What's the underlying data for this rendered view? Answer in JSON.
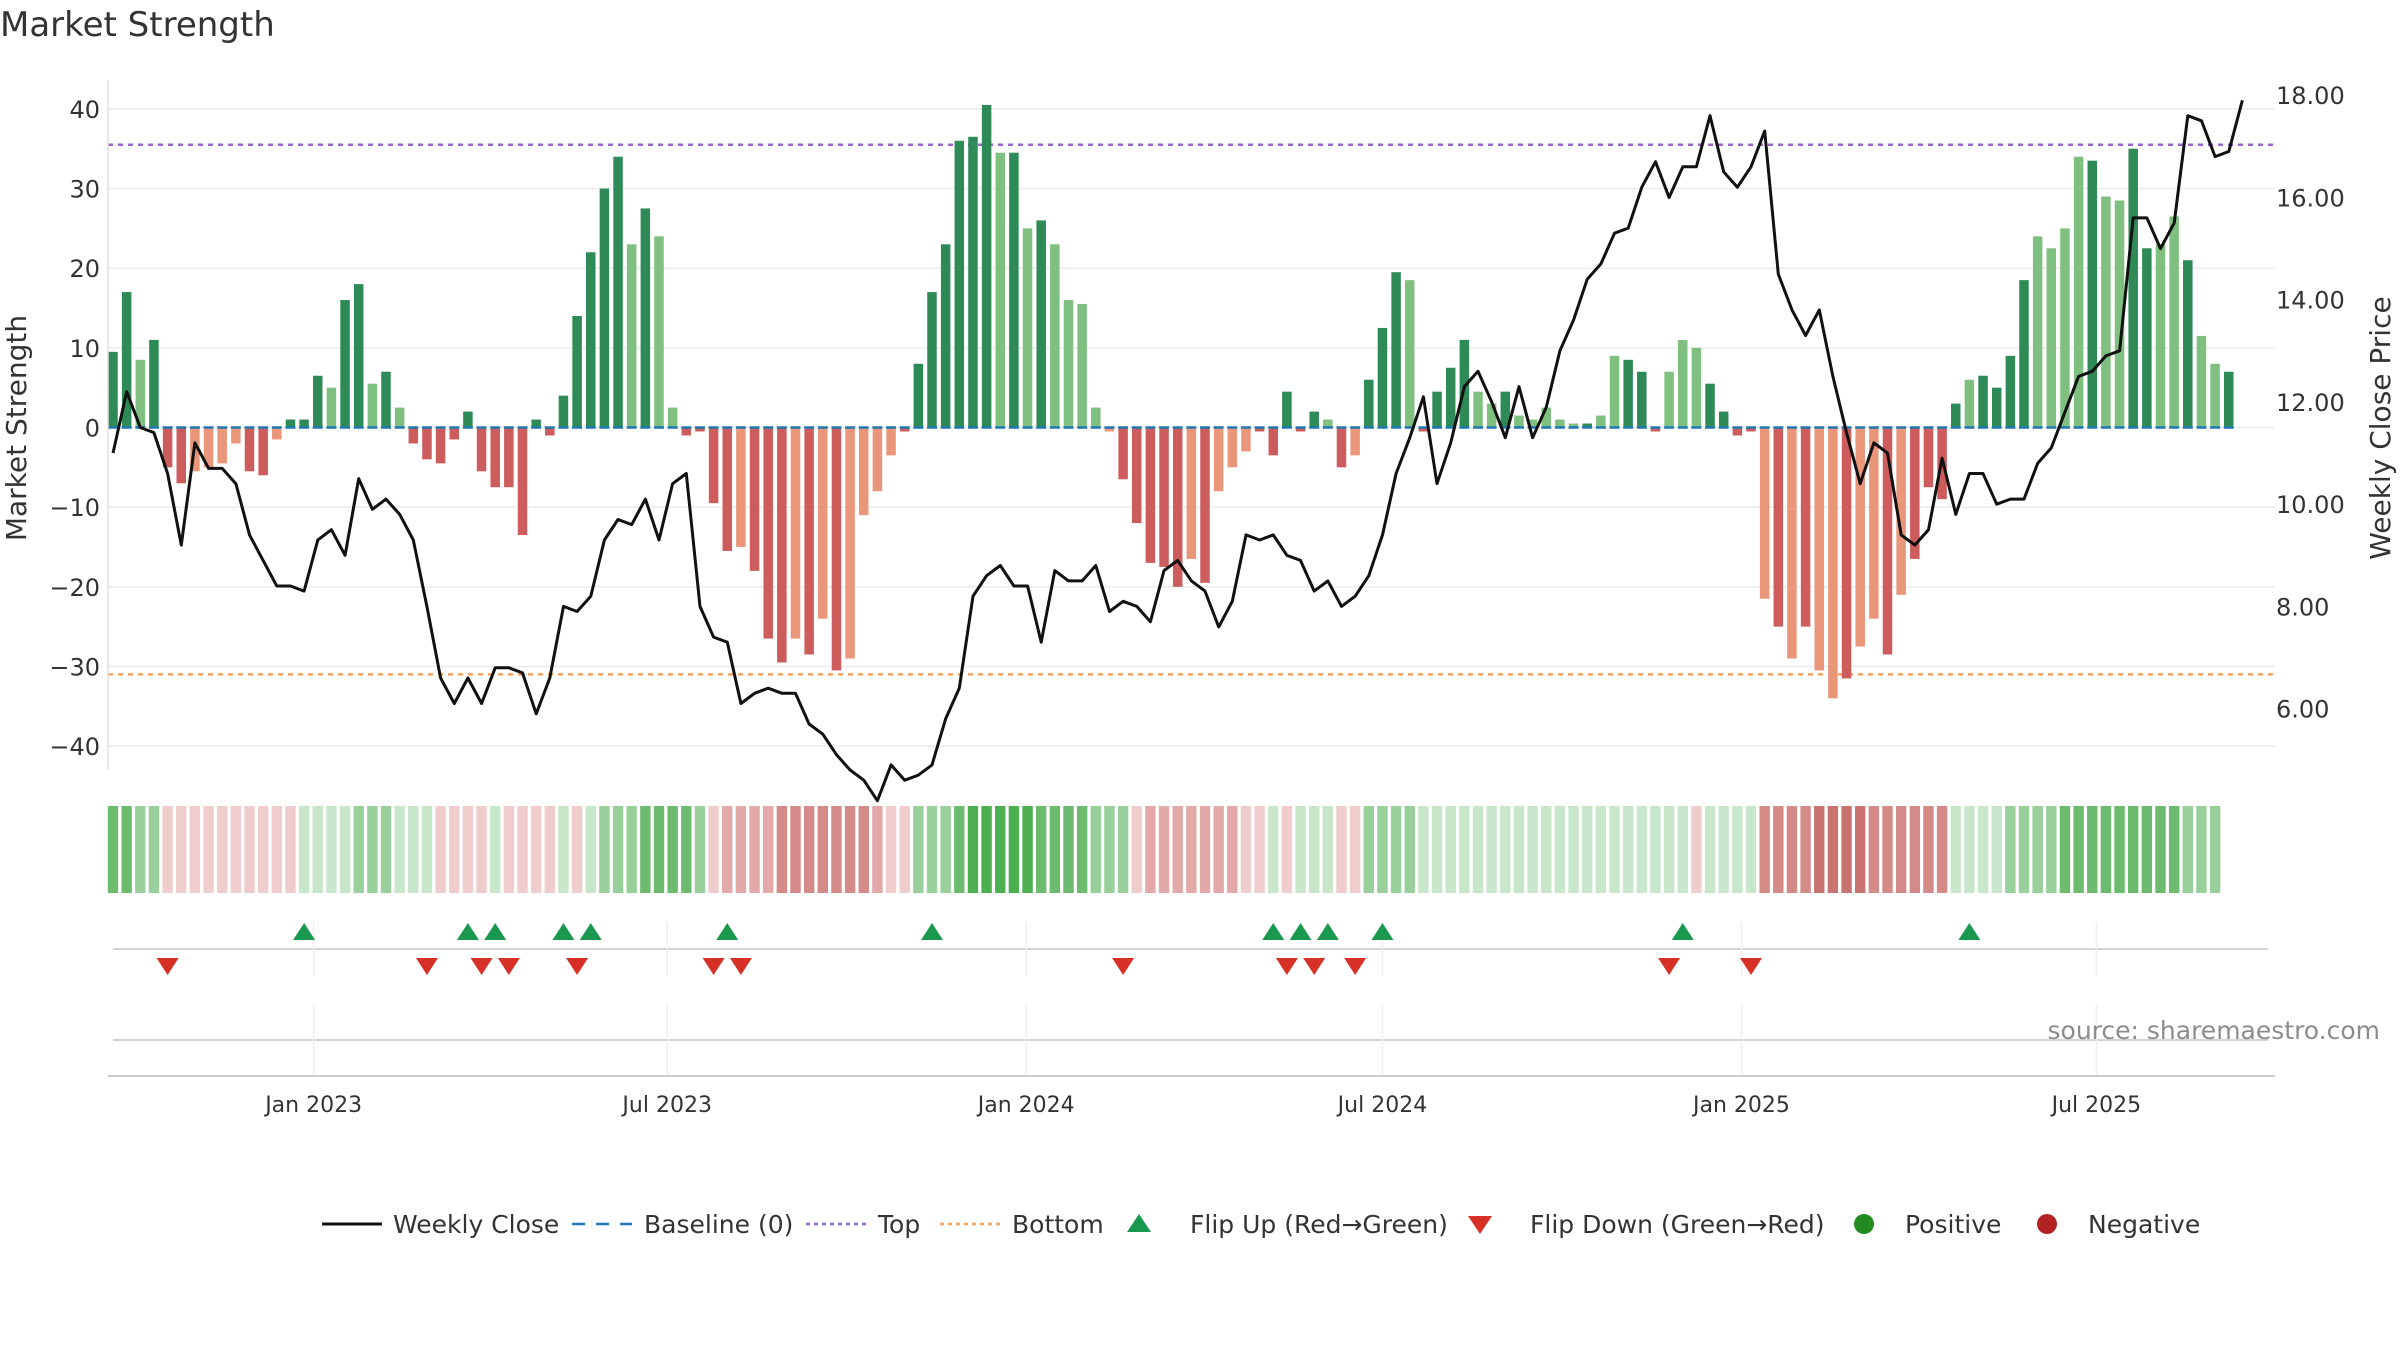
{
  "chart_data": {
    "type": "bar",
    "title": "Market Strength",
    "ylabel_left": "Market Strength",
    "ylabel_right": "Weekly Close Price",
    "ylim_left": [
      -43,
      43
    ],
    "ylim_right": [
      4.8,
      18.2
    ],
    "yticks_left": [
      40,
      30,
      20,
      10,
      0,
      -10,
      -20,
      -30,
      -40
    ],
    "yticks_left_labels": [
      "40",
      "30",
      "20",
      "10",
      "0",
      "−10",
      "−20",
      "−30",
      "−40"
    ],
    "yticks_right": [
      18,
      16,
      14,
      12,
      10,
      8,
      6
    ],
    "yticks_right_labels": [
      "18.00",
      "16.00",
      "14.00",
      "12.00",
      "10.00",
      "8.00",
      "6.00"
    ],
    "x_start_index": 0,
    "x_end_index": 157,
    "xticks": [
      {
        "index": 14.7,
        "label": "Jan 2023"
      },
      {
        "index": 40.6,
        "label": "Jul 2023"
      },
      {
        "index": 66.9,
        "label": "Jan 2024"
      },
      {
        "index": 93.0,
        "label": "Jul 2024"
      },
      {
        "index": 119.3,
        "label": "Jan 2025"
      },
      {
        "index": 145.3,
        "label": "Jul 2025"
      }
    ],
    "top_level": 35.5,
    "bottom_level": -31,
    "strength": [
      9.5,
      17,
      8.5,
      11,
      -5,
      -7,
      -5.5,
      -5,
      -4.5,
      -2,
      -5.5,
      -6,
      -1.5,
      1,
      1,
      6.5,
      5,
      16,
      18,
      5.5,
      7,
      2.5,
      -2,
      -4,
      -4.5,
      -1.5,
      2,
      -5.5,
      -7.5,
      -7.5,
      -13.5,
      1,
      -1,
      4,
      14,
      22,
      30,
      34,
      23,
      27.5,
      24,
      2.5,
      -1,
      -0.5,
      -9.5,
      -15.5,
      -15,
      -18,
      -26.5,
      -29.5,
      -26.5,
      -28.5,
      -24,
      -30.5,
      -29,
      -11,
      -8,
      -3.5,
      -0.5,
      8,
      17,
      23,
      36,
      36.5,
      40.5,
      34.5,
      34.5,
      25,
      26,
      23,
      16,
      15.5,
      2.5,
      -0.5,
      -6.5,
      -12,
      -17,
      -17.5,
      -20,
      -16.5,
      -19.5,
      -8,
      -5,
      -3,
      -0.5,
      -3.5,
      4.5,
      -0.5,
      2,
      1,
      -5,
      -3.5,
      6,
      12.5,
      19.5,
      18.5,
      -0.5,
      4.5,
      7.5,
      11,
      4.5,
      3,
      4.5,
      1.5,
      1,
      2.5,
      1,
      0.5,
      0.5,
      1.5,
      9,
      8.5,
      7,
      -0.5,
      7,
      11,
      10,
      5.5,
      2,
      -1,
      -0.5,
      -21.5,
      -25,
      -29,
      -25,
      -30.5,
      -34,
      -31.5,
      -27.5,
      -24,
      -28.5,
      -21,
      -16.5,
      -7.5,
      -9,
      3,
      6,
      6.5,
      5,
      9,
      18.5,
      24,
      22.5,
      25,
      34,
      33.5,
      29,
      28.5,
      35,
      22.5,
      23,
      26.5,
      21,
      11.5,
      8,
      7
    ],
    "bar_tone": [
      "d",
      "d",
      "l",
      "d",
      "d",
      "d",
      "l",
      "l",
      "l",
      "l",
      "d",
      "d",
      "l",
      "d",
      "d",
      "d",
      "l",
      "d",
      "d",
      "l",
      "d",
      "l",
      "d",
      "d",
      "d",
      "d",
      "d",
      "d",
      "d",
      "d",
      "d",
      "d",
      "d",
      "d",
      "d",
      "d",
      "d",
      "d",
      "l",
      "d",
      "l",
      "l",
      "d",
      "d",
      "d",
      "d",
      "l",
      "d",
      "d",
      "d",
      "l",
      "d",
      "l",
      "d",
      "l",
      "l",
      "l",
      "l",
      "d",
      "d",
      "d",
      "d",
      "d",
      "d",
      "d",
      "l",
      "d",
      "l",
      "d",
      "l",
      "l",
      "l",
      "l",
      "l",
      "d",
      "d",
      "d",
      "d",
      "d",
      "l",
      "d",
      "l",
      "l",
      "l",
      "d",
      "d",
      "d",
      "d",
      "d",
      "l",
      "d",
      "l",
      "d",
      "d",
      "d",
      "l",
      "d",
      "d",
      "d",
      "d",
      "l",
      "l",
      "d",
      "l",
      "l",
      "l",
      "l",
      "l",
      "d",
      "l",
      "l",
      "d",
      "d",
      "d",
      "l",
      "l",
      "l",
      "d",
      "d",
      "d",
      "d",
      "l",
      "d",
      "l",
      "d",
      "l",
      "l",
      "d",
      "l",
      "l",
      "d",
      "l",
      "d",
      "d",
      "d",
      "d",
      "l",
      "d",
      "d",
      "d",
      "d",
      "l",
      "l",
      "l",
      "l",
      "d",
      "l",
      "l",
      "d",
      "d",
      "l",
      "l",
      "d",
      "l",
      "l",
      "d",
      "l",
      "l",
      "l"
    ],
    "weekly_close": [
      11,
      12.2,
      11.5,
      11.4,
      10.6,
      9.2,
      11.2,
      10.7,
      10.7,
      10.4,
      9.4,
      8.9,
      8.4,
      8.4,
      8.3,
      9.3,
      9.5,
      9.0,
      10.5,
      9.9,
      10.1,
      9.8,
      9.3,
      8.0,
      6.6,
      6.1,
      6.6,
      6.1,
      6.8,
      6.8,
      6.7,
      5.9,
      6.6,
      8.0,
      7.9,
      8.2,
      9.3,
      9.7,
      9.6,
      10.1,
      9.3,
      10.4,
      10.6,
      8.0,
      7.4,
      7.3,
      6.1,
      6.3,
      6.4,
      6.3,
      6.3,
      5.7,
      5.5,
      5.1,
      4.8,
      4.6,
      4.2,
      4.9,
      4.6,
      4.7,
      4.9,
      5.8,
      6.4,
      8.2,
      8.6,
      8.8,
      8.4,
      8.4,
      7.3,
      8.7,
      8.5,
      8.5,
      8.8,
      7.9,
      8.1,
      8.0,
      7.7,
      8.7,
      8.9,
      8.5,
      8.3,
      7.6,
      8.1,
      9.4,
      9.3,
      9.4,
      9.0,
      8.9,
      8.3,
      8.5,
      8.0,
      8.2,
      8.6,
      9.4,
      10.6,
      11.3,
      12.1,
      10.4,
      11.2,
      12.3,
      12.6,
      12.0,
      11.3,
      12.3,
      11.3,
      11.9,
      13.0,
      13.6,
      14.4,
      14.7,
      15.3,
      15.4,
      16.2,
      16.7,
      16.0,
      16.6,
      16.6,
      17.6,
      16.5,
      16.2,
      16.6,
      17.3,
      14.5,
      13.8,
      13.3,
      13.8,
      12.5,
      11.4,
      10.4,
      11.2,
      11.0,
      9.4,
      9.2,
      9.5,
      10.9,
      9.8,
      10.6,
      10.6,
      10.0,
      10.1,
      10.1,
      10.8,
      11.1,
      11.8,
      12.5,
      12.6,
      12.9,
      13.0,
      15.6,
      15.6,
      15.0,
      15.5,
      17.6,
      17.5,
      16.8,
      16.9,
      17.9
    ],
    "flip_up_indices": [
      14,
      26,
      28,
      33,
      35,
      45,
      60,
      85,
      87,
      89,
      93,
      115,
      136
    ],
    "flip_down_indices": [
      4,
      23,
      27,
      29,
      34,
      44,
      46,
      74,
      86,
      88,
      91,
      114,
      120
    ],
    "strip_tone": [
      "g3",
      "g3",
      "g2",
      "g2",
      "r1",
      "r1",
      "r1",
      "r1",
      "r1",
      "r1",
      "r1",
      "r1",
      "r1",
      "r1",
      "g1",
      "g1",
      "g1",
      "g1",
      "g2",
      "g2",
      "g2",
      "g1",
      "g1",
      "g1",
      "r1",
      "r1",
      "r1",
      "r1",
      "g1",
      "r1",
      "r1",
      "r1",
      "r1",
      "g1",
      "r1",
      "g1",
      "g2",
      "g2",
      "g2",
      "g3",
      "g3",
      "g3",
      "g3",
      "g2",
      "r1",
      "r2",
      "r2",
      "r2",
      "r2",
      "r3",
      "r3",
      "r3",
      "r3",
      "r3",
      "r3",
      "r3",
      "r2",
      "r1",
      "r1",
      "g2",
      "g2",
      "g2",
      "g3",
      "g4",
      "g4",
      "g4",
      "g4",
      "g4",
      "g3",
      "g3",
      "g3",
      "g3",
      "g2",
      "g2",
      "g2",
      "r1",
      "r2",
      "r2",
      "r2",
      "r2",
      "r2",
      "r2",
      "r2",
      "r1",
      "r1",
      "g1",
      "r1",
      "g1",
      "g1",
      "g1",
      "r1",
      "r1",
      "g2",
      "g2",
      "g2",
      "g2",
      "g1",
      "g1",
      "g1",
      "g1",
      "g1",
      "g1",
      "g1",
      "g1",
      "g1",
      "g1",
      "g1",
      "g1",
      "g1",
      "g1",
      "g1",
      "g1",
      "g1",
      "g1",
      "g1",
      "g1",
      "r1",
      "g1",
      "g1",
      "g1",
      "g1",
      "r3",
      "r3",
      "r3",
      "r3",
      "r4",
      "r4",
      "r4",
      "r4",
      "r3",
      "r3",
      "r3",
      "r3",
      "r3",
      "r3",
      "g1",
      "g1",
      "g1",
      "g1",
      "g2",
      "g2",
      "g2",
      "g2",
      "g3",
      "g3",
      "g3",
      "g3",
      "g3",
      "g3",
      "g3",
      "g3",
      "g3",
      "g2",
      "g2",
      "g2"
    ],
    "source_text": "source: sharemaestro.com",
    "legend": [
      {
        "key": "close",
        "label": "Weekly Close"
      },
      {
        "key": "baseline",
        "label": "Baseline (0)"
      },
      {
        "key": "top",
        "label": "Top"
      },
      {
        "key": "bottom",
        "label": "Bottom"
      },
      {
        "key": "flipup",
        "label": "Flip Up (Red→Green)"
      },
      {
        "key": "flipdown",
        "label": "Flip Down (Green→Red)"
      },
      {
        "key": "positive",
        "label": "Positive"
      },
      {
        "key": "negative",
        "label": "Negative"
      }
    ],
    "colors": {
      "pos_dark": "#2e8b57",
      "pos_light": "#7fbf7f",
      "neg_dark": "#cd5c5c",
      "neg_light": "#e9967a",
      "close_line": "#111111",
      "baseline": "#1f77b4",
      "top": "#9966cc",
      "bottom": "#f4a460",
      "flip_up": "#1a9850",
      "flip_down": "#d73027",
      "positive_dot": "#228b22",
      "negative_dot": "#b22222",
      "g1": "#c8e6c9",
      "g2": "#98cf9a",
      "g3": "#6cbb6f",
      "g4": "#4caf50",
      "r1": "#f0cdcd",
      "r2": "#e3a8a8",
      "r3": "#d48a87",
      "r4": "#c8736f"
    }
  }
}
